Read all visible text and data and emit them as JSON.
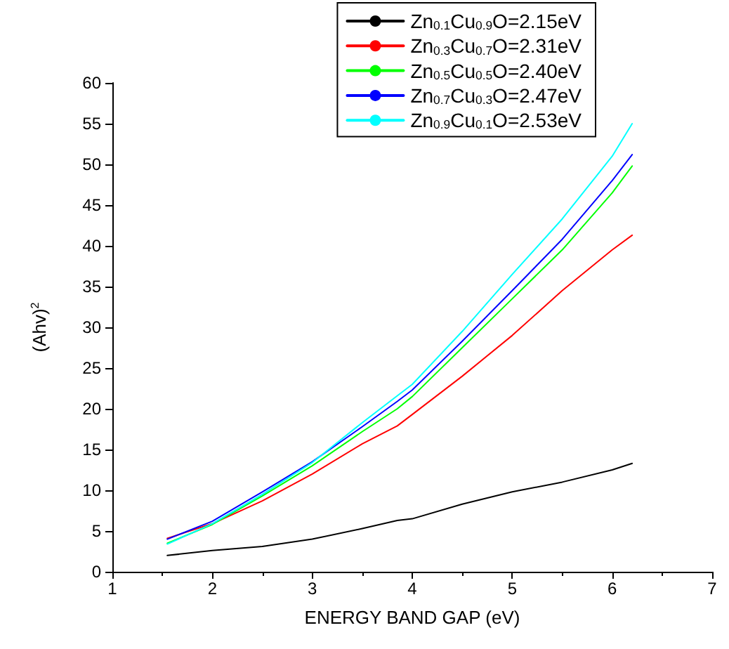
{
  "chart_data": {
    "type": "line",
    "xlabel": "ENERGY BAND GAP (eV)",
    "ylabel": "(Ahv)$^{2}$",
    "xlim": [
      1,
      7
    ],
    "xticks": [
      1,
      2,
      3,
      4,
      5,
      6,
      7
    ],
    "ylim": [
      0,
      60
    ],
    "yticks": [
      0,
      5,
      10,
      15,
      20,
      25,
      30,
      35,
      40,
      45,
      50,
      55,
      60
    ],
    "grid": false,
    "legend": "top right",
    "marker": "none",
    "line_style": "solid",
    "x": [
      1.55,
      2,
      2.5,
      3,
      3.5,
      3.85,
      4,
      4.5,
      5,
      5.5,
      6,
      6.2
    ],
    "series": [
      {
        "name": "Zn$_{0.1}$Cu$_{0.9}$O=2.15eV",
        "color": "#000000",
        "values": [
          2.0,
          2.6,
          3.1,
          4.0,
          5.3,
          6.3,
          6.5,
          8.3,
          9.8,
          11.0,
          12.5,
          13.3
        ]
      },
      {
        "name": "Zn$_{0.3}$Cu$_{0.7}$O=2.31eV",
        "color": "#ff0000",
        "values": [
          4.1,
          5.9,
          8.7,
          12.0,
          15.7,
          17.9,
          19.3,
          24.0,
          29.0,
          34.5,
          39.5,
          41.3
        ]
      },
      {
        "name": "Zn$_{0.5}$Cu$_{0.5}$O=2.40eV",
        "color": "#00ff00",
        "values": [
          3.5,
          5.8,
          9.3,
          13.0,
          17.2,
          20.0,
          21.5,
          27.5,
          33.5,
          39.5,
          46.5,
          49.8
        ]
      },
      {
        "name": "Zn$_{0.7}$Cu$_{0.3}$O=2.47eV",
        "color": "#0000ff",
        "values": [
          4.0,
          6.2,
          9.8,
          13.5,
          17.8,
          20.9,
          22.3,
          28.3,
          34.5,
          40.8,
          48.0,
          51.2
        ]
      },
      {
        "name": "Zn$_{0.9}$Cu$_{0.1}$O=2.53eV",
        "color": "#00ffff",
        "values": [
          3.4,
          5.9,
          9.5,
          13.4,
          18.3,
          21.6,
          23.0,
          29.5,
          36.5,
          43.3,
          51.0,
          55.0
        ]
      }
    ]
  }
}
